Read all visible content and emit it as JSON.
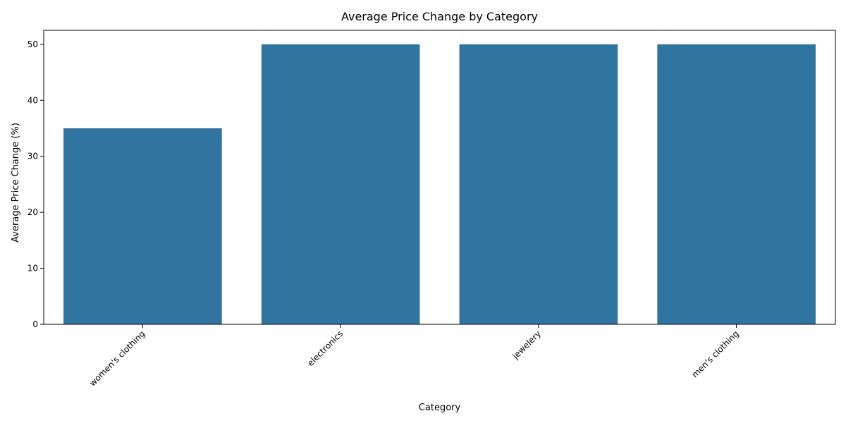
{
  "chart_data": {
    "type": "bar",
    "title": "Average Price Change by Category",
    "xlabel": "Category",
    "ylabel": "Average Price Change (%)",
    "categories": [
      "women's clothing",
      "electronics",
      "jewelery",
      "men's clothing"
    ],
    "values": [
      35,
      50,
      50,
      50
    ],
    "ylim": [
      0,
      52.5
    ],
    "yticks": [
      0,
      10,
      20,
      30,
      40,
      50
    ],
    "bar_color": "#3274a1",
    "grid": false,
    "legend": "none"
  }
}
